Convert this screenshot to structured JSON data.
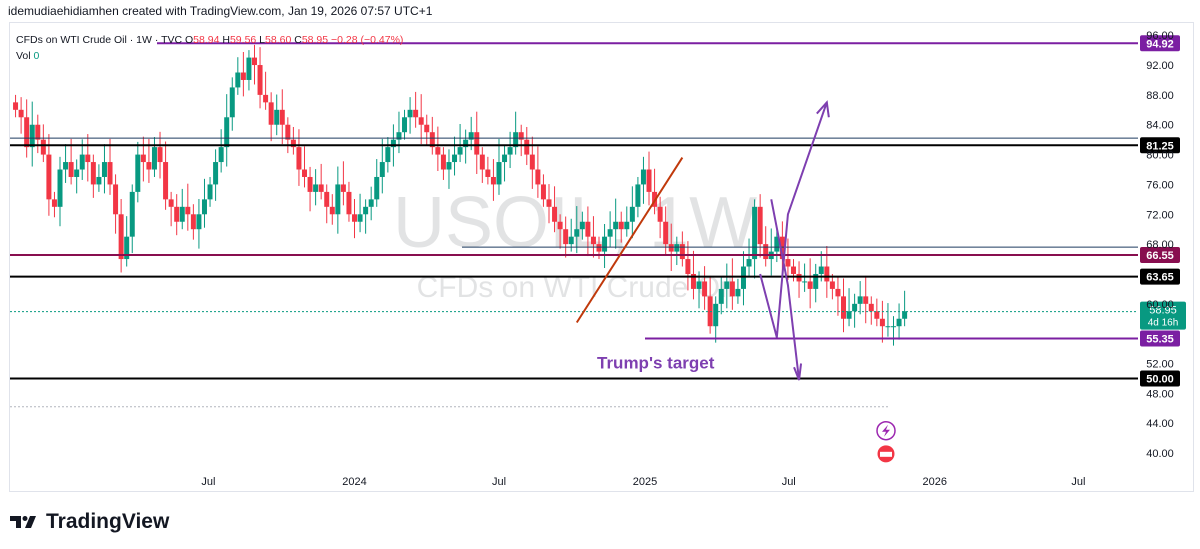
{
  "header": {
    "credit": "idemudiaehidiamhen created with TradingView.com, Jan 19, 2026 07:57 UTC+1"
  },
  "legend": {
    "symbol": "CFDs on WTI Crude Oil · 1W · TVC",
    "o_label": "O",
    "o": "58.94",
    "h_label": "H",
    "h": "59.56",
    "l_label": "L",
    "l": "58.60",
    "c_label": "C",
    "c": "58.95",
    "change": "−0.28 (−0.47%)",
    "vol_label": "Vol",
    "vol": "0"
  },
  "watermark": {
    "ticker": "USOIL, 1W",
    "name": "CFDs on WTI Crude Oil"
  },
  "footer": {
    "brand": "TradingView"
  },
  "colors": {
    "up": "#089981",
    "down": "#f23645",
    "purple": "#7b1fa2",
    "maroon": "#880e4f",
    "black": "#000000",
    "trend": "#c0390b",
    "arrow": "#7e3fb0"
  },
  "chart_data": {
    "type": "candlestick",
    "title": "CFDs on WTI Crude Oil · 1W · TVC",
    "ylim": [
      38,
      97.5
    ],
    "y_ticks": [
      "96.00",
      "92.00",
      "88.00",
      "84.00",
      "80.00",
      "76.00",
      "72.00",
      "68.00",
      "60.00",
      "52.00",
      "48.00",
      "44.00",
      "40.00"
    ],
    "x_ticks": [
      {
        "label": "Jul",
        "date": "2023-07-01"
      },
      {
        "label": "2024",
        "date": "2024-01-01"
      },
      {
        "label": "Jul",
        "date": "2024-07-01"
      },
      {
        "label": "2025",
        "date": "2025-01-01"
      },
      {
        "label": "Jul",
        "date": "2025-07-01"
      },
      {
        "label": "2026",
        "date": "2026-01-01"
      },
      {
        "label": "Jul",
        "date": "2026-07-01"
      }
    ],
    "x_range": [
      "2022-10-24",
      "2026-09-14"
    ],
    "closes_weekly_from_2022-10-31": [
      86,
      85,
      81,
      84,
      82,
      80,
      74,
      73,
      78,
      79,
      77,
      78,
      80,
      79,
      76,
      77,
      79,
      76,
      72,
      66,
      69,
      75,
      80,
      79,
      78,
      81,
      79,
      74,
      73,
      71,
      73,
      72,
      70,
      72,
      74,
      76,
      79,
      81,
      85,
      89,
      91,
      90,
      93,
      92,
      88,
      87,
      84,
      86,
      84,
      82,
      81,
      78,
      77,
      75,
      76,
      75,
      73,
      72,
      76,
      75,
      72,
      71,
      72,
      73,
      74,
      77,
      79,
      81,
      82,
      83,
      85,
      86,
      85,
      84,
      83,
      81,
      80,
      78,
      79,
      80,
      81,
      82,
      83,
      80,
      78,
      77,
      76,
      79,
      80,
      81,
      83,
      82,
      80,
      78,
      76,
      74,
      73,
      71,
      70,
      68,
      69,
      70,
      71,
      69,
      68,
      67,
      69,
      70,
      71,
      70,
      71,
      73,
      76,
      78,
      75,
      73,
      71,
      68,
      67,
      68,
      66,
      64,
      62,
      63,
      61,
      57,
      60,
      62,
      63,
      61,
      62,
      65,
      66,
      73,
      68,
      66,
      67,
      69,
      66,
      65,
      64,
      63,
      63,
      62,
      64,
      65,
      63,
      62,
      61,
      58,
      59,
      60,
      61,
      60,
      59,
      58,
      57,
      57,
      57,
      58,
      59
    ],
    "current_price": {
      "value": "58.95",
      "countdown": "4d 16h"
    },
    "horizontal_levels": [
      {
        "value": "94.92",
        "color": "purple"
      },
      {
        "value": "81.25",
        "color": "black"
      },
      {
        "value": "66.55",
        "color": "maroon"
      },
      {
        "value": "63.65",
        "color": "black"
      },
      {
        "value": "55.35",
        "color": "purple"
      },
      {
        "value": "50.00",
        "color": "black"
      }
    ],
    "annotations": [
      {
        "text": "Trump's target"
      }
    ]
  }
}
